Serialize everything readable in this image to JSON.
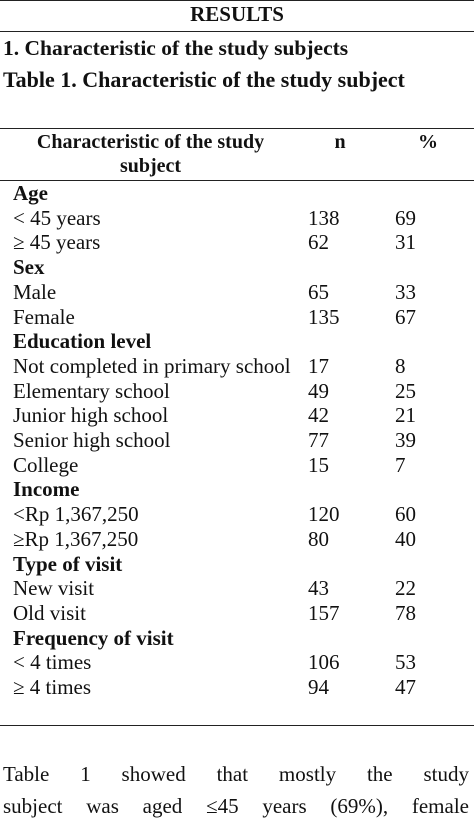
{
  "header": {
    "title": "RESULTS"
  },
  "section_heading": "1. Characteristic of the study subjects",
  "table": {
    "caption": "Table 1. Characteristic of the study subject",
    "columns": [
      "Characteristic of the study subject",
      "n",
      "%"
    ],
    "rows": [
      [
        "Age"
      ],
      [
        "< 45 years",
        138,
        69
      ],
      [
        "≥ 45 years",
        62,
        31
      ],
      [
        "Sex"
      ],
      [
        "Male",
        65,
        33
      ],
      [
        "Female",
        135,
        67
      ],
      [
        "Education level"
      ],
      [
        "Not completed in primary school",
        17,
        8
      ],
      [
        "Elementary school",
        49,
        25
      ],
      [
        "Junior high school",
        42,
        21
      ],
      [
        "Senior high school",
        77,
        39
      ],
      [
        "College",
        15,
        7
      ],
      [
        "Income"
      ],
      [
        "<Rp 1,367,250",
        120,
        60
      ],
      [
        "≥Rp 1,367,250",
        80,
        40
      ],
      [
        "Type of visit"
      ],
      [
        "New visit",
        43,
        22
      ],
      [
        "Old visit",
        157,
        78
      ],
      [
        "Frequency of visit"
      ],
      [
        "< 4 times",
        106,
        53
      ],
      [
        "≥ 4 times",
        94,
        47
      ]
    ]
  },
  "paragraph": [
    "Table 1 showed that mostly the study",
    "subject was aged ≤45 years (69%), female"
  ]
}
